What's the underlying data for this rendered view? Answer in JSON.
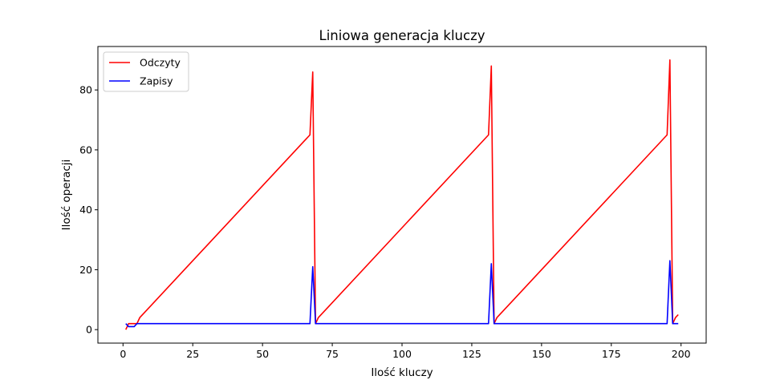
{
  "chart_data": {
    "type": "line",
    "title": "Liniowa generacja kluczy",
    "xlabel": "Ilość kluczy",
    "ylabel": "Ilość operacji",
    "xlim": [
      -9,
      209
    ],
    "ylim": [
      -4.5,
      94.5
    ],
    "xticks": [
      0,
      25,
      50,
      75,
      100,
      125,
      150,
      175,
      200
    ],
    "yticks": [
      0,
      20,
      40,
      60,
      80
    ],
    "grid": false,
    "legend_position": "top-left",
    "series": [
      {
        "name": "Odczyty",
        "color": "#ff0000",
        "points": [
          [
            1,
            0
          ],
          [
            2,
            2
          ],
          [
            3,
            2
          ],
          [
            4,
            2
          ],
          [
            5,
            2
          ],
          [
            6,
            4
          ],
          [
            67,
            65
          ],
          [
            68,
            86
          ],
          [
            69,
            2
          ],
          [
            70,
            4
          ],
          [
            131,
            65
          ],
          [
            132,
            88
          ],
          [
            133,
            2
          ],
          [
            134,
            4
          ],
          [
            195,
            65
          ],
          [
            196,
            90
          ],
          [
            197,
            2
          ],
          [
            198,
            4
          ],
          [
            199,
            5
          ]
        ]
      },
      {
        "name": "Zapisy",
        "color": "#0000ff",
        "points": [
          [
            1,
            2
          ],
          [
            2,
            1
          ],
          [
            3,
            1
          ],
          [
            4,
            1
          ],
          [
            5,
            2
          ],
          [
            6,
            2
          ],
          [
            67,
            2
          ],
          [
            68,
            21
          ],
          [
            69,
            2
          ],
          [
            70,
            2
          ],
          [
            131,
            2
          ],
          [
            132,
            22
          ],
          [
            133,
            2
          ],
          [
            134,
            2
          ],
          [
            195,
            2
          ],
          [
            196,
            23
          ],
          [
            197,
            2
          ],
          [
            198,
            2
          ],
          [
            199,
            2
          ]
        ]
      }
    ]
  }
}
